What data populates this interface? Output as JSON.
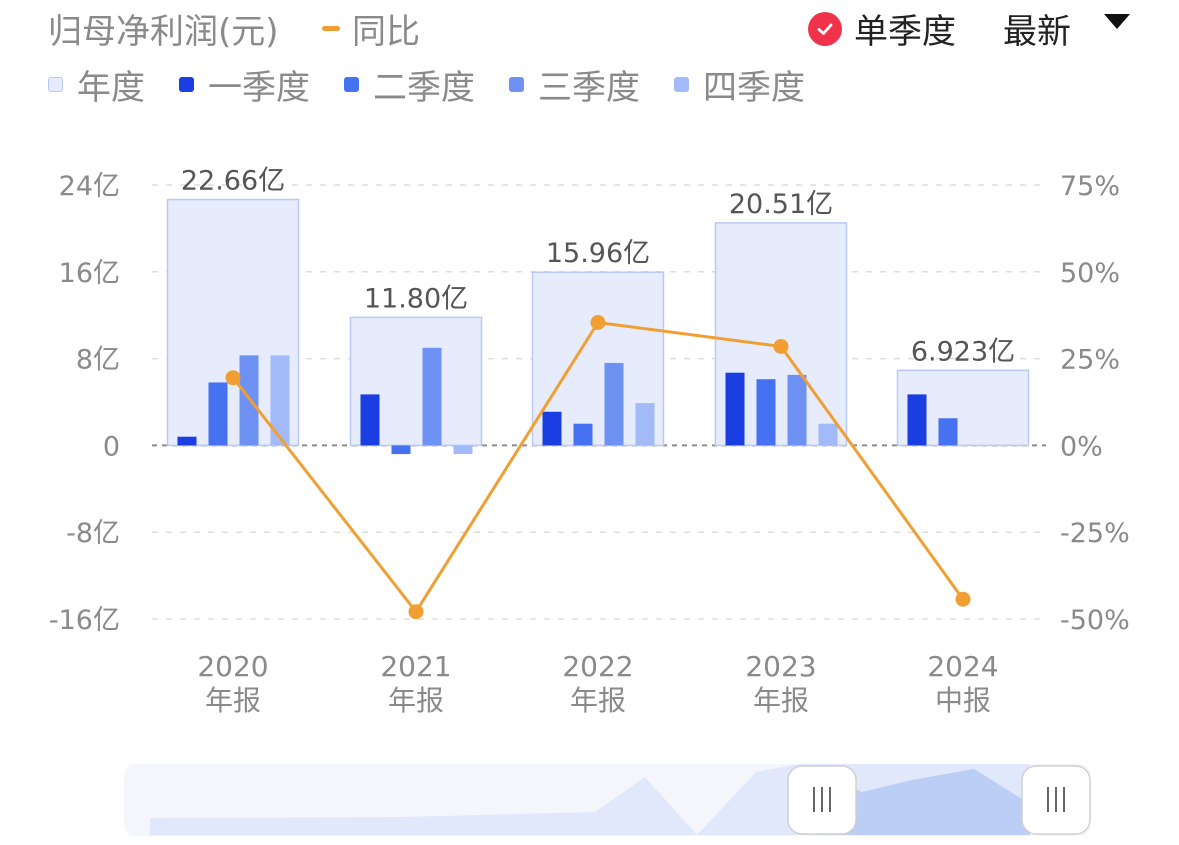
{
  "header": {
    "title": "归母净利润(元)",
    "yoy_label": "同比",
    "single_quarter_label": "单季度",
    "latest_label": "最新"
  },
  "legend": [
    {
      "label": "年度",
      "color": "#e6ecfc"
    },
    {
      "label": "一季度",
      "color": "#1b3ee2"
    },
    {
      "label": "二季度",
      "color": "#4671f0"
    },
    {
      "label": "三季度",
      "color": "#6d92f4"
    },
    {
      "label": "四季度",
      "color": "#a3baf8"
    }
  ],
  "colors": {
    "annual_fill": "#e6ecfc",
    "annual_border": "#b9c9f4",
    "q1": "#1b3ee2",
    "q2": "#4671f0",
    "q3": "#6d92f4",
    "q4": "#a3baf8",
    "yoy_line": "#f19e33",
    "check_red": "#f0334a",
    "axis_text": "#8a8a8a",
    "grid": "#dddddd"
  },
  "chart_data": {
    "type": "bar",
    "categories": [
      {
        "year": "2020",
        "period": "年报"
      },
      {
        "year": "2021",
        "period": "年报"
      },
      {
        "year": "2022",
        "period": "年报"
      },
      {
        "year": "2023",
        "period": "年报"
      },
      {
        "year": "2024",
        "period": "中报"
      }
    ],
    "annual_values": [
      22.66,
      11.8,
      15.96,
      20.51,
      6.923
    ],
    "annual_labels": [
      "22.66亿",
      "11.80亿",
      "15.96亿",
      "20.51亿",
      "6.923亿"
    ],
    "quarterly_series": [
      {
        "name": "一季度",
        "values": [
          0.8,
          4.7,
          3.1,
          6.7,
          4.7
        ]
      },
      {
        "name": "二季度",
        "values": [
          5.8,
          -0.8,
          2.0,
          6.1,
          2.5
        ]
      },
      {
        "name": "三季度",
        "values": [
          8.3,
          9.0,
          7.6,
          6.5,
          null
        ]
      },
      {
        "name": "四季度",
        "values": [
          8.3,
          -0.8,
          3.9,
          2.0,
          null
        ]
      }
    ],
    "yoy_series": {
      "name": "同比",
      "values": [
        19.5,
        -47.9,
        35.4,
        28.5,
        -44.3
      ]
    },
    "left_axis": {
      "ticks": [
        24,
        16,
        8,
        0,
        -8,
        -16
      ],
      "labels": [
        "24亿",
        "16亿",
        "8亿",
        "0",
        "-8亿",
        "-16亿"
      ],
      "ylim": [
        -16,
        24
      ]
    },
    "right_axis": {
      "ticks": [
        75,
        50,
        25,
        0,
        -25,
        -50
      ],
      "labels": [
        "75%",
        "50%",
        "25%",
        "0%",
        "-25%",
        "-50%"
      ],
      "ylim": [
        -50,
        75
      ]
    },
    "grid": true
  }
}
